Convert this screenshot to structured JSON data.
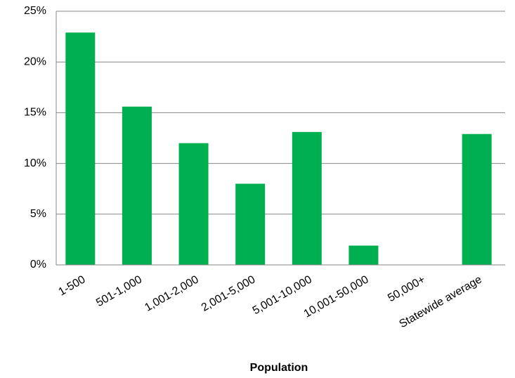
{
  "chart_data": {
    "type": "bar",
    "x_label": "Population",
    "categories": [
      "1-500",
      "501-1,000",
      "1,001-2,000",
      "2,001-5,000",
      "5,001-10,000",
      "10,001-50,000",
      "50,000+",
      "Statewide average"
    ],
    "values": [
      22.9,
      15.6,
      12.0,
      8.0,
      13.1,
      1.9,
      0,
      12.9
    ],
    "color": "#00b050",
    "ylim": [
      0,
      25
    ],
    "yticks": [
      {
        "value": 0,
        "label": "0%"
      },
      {
        "value": 5,
        "label": "5%"
      },
      {
        "value": 10,
        "label": "10%"
      },
      {
        "value": 15,
        "label": "15%"
      },
      {
        "value": 20,
        "label": "20%"
      },
      {
        "value": 25,
        "label": "25%"
      }
    ],
    "grid": true
  }
}
